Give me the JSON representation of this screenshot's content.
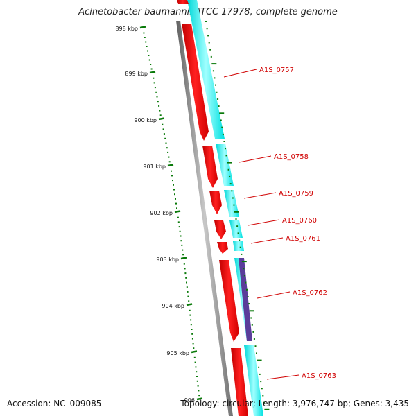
{
  "title": "Acinetobacter baumannii ATCC 17978, complete genome",
  "accession": "Accession: NC_009085",
  "summary": "Topology: circular; Length: 3,976,747 bp; Genes: 3,435",
  "colors": {
    "backbone": "#808080",
    "cds_fwd": "#ff0000",
    "cds_rev_track": "#00ffff",
    "highlight": "#5a3d9a",
    "tick": "#0a7a0a",
    "label": "#d00000"
  },
  "scale_ticks": [
    {
      "label": "898 kbp"
    },
    {
      "label": "899 kbp"
    },
    {
      "label": "900 kbp"
    },
    {
      "label": "901 kbp"
    },
    {
      "label": "902 kbp"
    },
    {
      "label": "903 kbp"
    },
    {
      "label": "904 kbp"
    },
    {
      "label": "905 kbp"
    },
    {
      "label": "906"
    }
  ],
  "genes": [
    {
      "label": "A1S_0757"
    },
    {
      "label": "A1S_0758"
    },
    {
      "label": "A1S_0759"
    },
    {
      "label": "A1S_0760"
    },
    {
      "label": "A1S_0761"
    },
    {
      "label": "A1S_0762"
    },
    {
      "label": "A1S_0763"
    }
  ]
}
